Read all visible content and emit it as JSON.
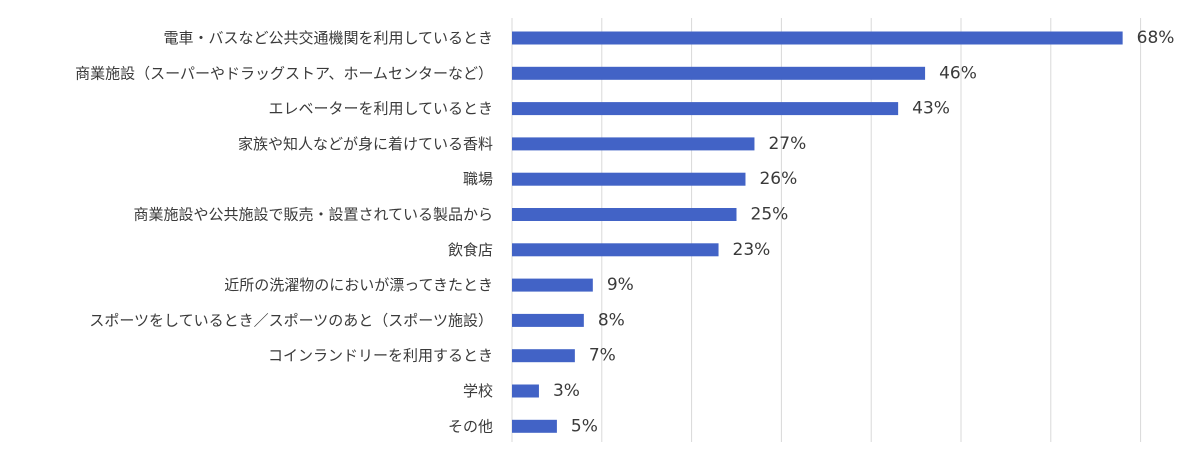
{
  "chart_data": {
    "type": "bar",
    "orientation": "horizontal",
    "categories": [
      "電車・バスなど公共交通機関を利用しているとき",
      "商業施設（スーパーやドラッグストア、ホームセンターなど）",
      "エレベーターを利用しているとき",
      "家族や知人などが身に着けている香料",
      "職場",
      "商業施設や公共施設で販売・設置されている製品から",
      "飲食店",
      "近所の洗濯物のにおいが漂ってきたとき",
      "スポーツをしているとき／スポーツのあと（スポーツ施設）",
      "コインランドリーを利用するとき",
      "学校",
      "その他"
    ],
    "values": [
      68,
      46,
      43,
      27,
      26,
      25,
      23,
      9,
      8,
      7,
      3,
      5
    ],
    "value_labels": [
      "68%",
      "46%",
      "43%",
      "27%",
      "26%",
      "25%",
      "23%",
      "9%",
      "8%",
      "7%",
      "3%",
      "5%"
    ],
    "xlim": [
      0,
      90
    ],
    "grid": true,
    "legend": "none",
    "colors": {
      "bar": "#4263c6",
      "grid": "#d9d9d9",
      "text": "#3a3a3a"
    }
  }
}
